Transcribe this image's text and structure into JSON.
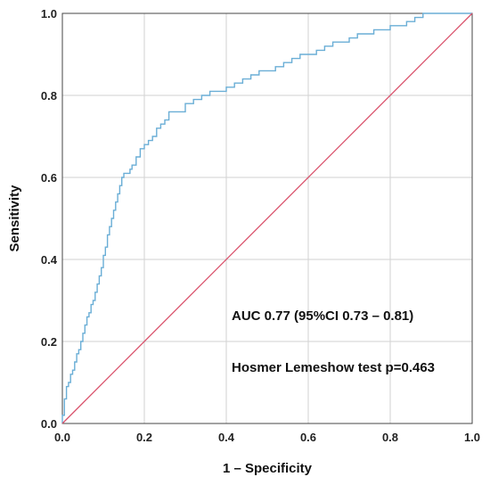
{
  "chart_data": {
    "type": "line",
    "xlabel": "1 – Specificity",
    "ylabel": "Sensitivity",
    "xlim": [
      0,
      1
    ],
    "ylim": [
      0,
      1
    ],
    "grid": true,
    "x_ticks": [
      "0.0",
      "0.2",
      "0.4",
      "0.6",
      "0.8",
      "1.0"
    ],
    "y_ticks": [
      "0.0",
      "0.2",
      "0.4",
      "0.6",
      "0.8",
      "1.0"
    ],
    "series": [
      {
        "color": "#6aaed6",
        "x": [
          0,
          0,
          0.005,
          0.005,
          0.01,
          0.01,
          0.015,
          0.02,
          0.02,
          0.025,
          0.03,
          0.035,
          0.04,
          0.045,
          0.05,
          0.055,
          0.06,
          0.065,
          0.07,
          0.075,
          0.08,
          0.085,
          0.09,
          0.095,
          0.1,
          0.105,
          0.11,
          0.115,
          0.12,
          0.125,
          0.13,
          0.135,
          0.14,
          0.145,
          0.15,
          0.155,
          0.16,
          0.165,
          0.17,
          0.18,
          0.19,
          0.2,
          0.21,
          0.22,
          0.23,
          0.24,
          0.25,
          0.26,
          0.27,
          0.28,
          0.3,
          0.32,
          0.34,
          0.36,
          0.37,
          0.38,
          0.4,
          0.42,
          0.44,
          0.46,
          0.48,
          0.5,
          0.52,
          0.54,
          0.56,
          0.58,
          0.6,
          0.62,
          0.64,
          0.66,
          0.68,
          0.7,
          0.72,
          0.74,
          0.76,
          0.78,
          0.8,
          0.82,
          0.84,
          0.86,
          0.88,
          0.9,
          1.0
        ],
        "y": [
          0,
          0.02,
          0.04,
          0.06,
          0.07,
          0.09,
          0.1,
          0.11,
          0.12,
          0.13,
          0.15,
          0.17,
          0.18,
          0.2,
          0.22,
          0.24,
          0.26,
          0.27,
          0.29,
          0.3,
          0.32,
          0.34,
          0.36,
          0.38,
          0.41,
          0.43,
          0.46,
          0.48,
          0.5,
          0.52,
          0.54,
          0.56,
          0.58,
          0.6,
          0.61,
          0.61,
          0.61,
          0.62,
          0.63,
          0.65,
          0.67,
          0.68,
          0.69,
          0.7,
          0.72,
          0.73,
          0.74,
          0.76,
          0.76,
          0.76,
          0.78,
          0.79,
          0.8,
          0.81,
          0.81,
          0.81,
          0.82,
          0.83,
          0.84,
          0.85,
          0.86,
          0.86,
          0.87,
          0.88,
          0.89,
          0.9,
          0.9,
          0.91,
          0.92,
          0.93,
          0.93,
          0.94,
          0.95,
          0.95,
          0.96,
          0.96,
          0.97,
          0.97,
          0.98,
          0.99,
          1.0,
          1.0,
          1.0
        ]
      },
      {
        "color": "#d9506a",
        "x": [
          0,
          1
        ],
        "y": [
          0,
          1
        ]
      }
    ],
    "annotations": [
      "AUC 0.77 (95%CI 0.73 – 0.81)",
      "Hosmer  Lemeshow test p=0.463"
    ]
  }
}
